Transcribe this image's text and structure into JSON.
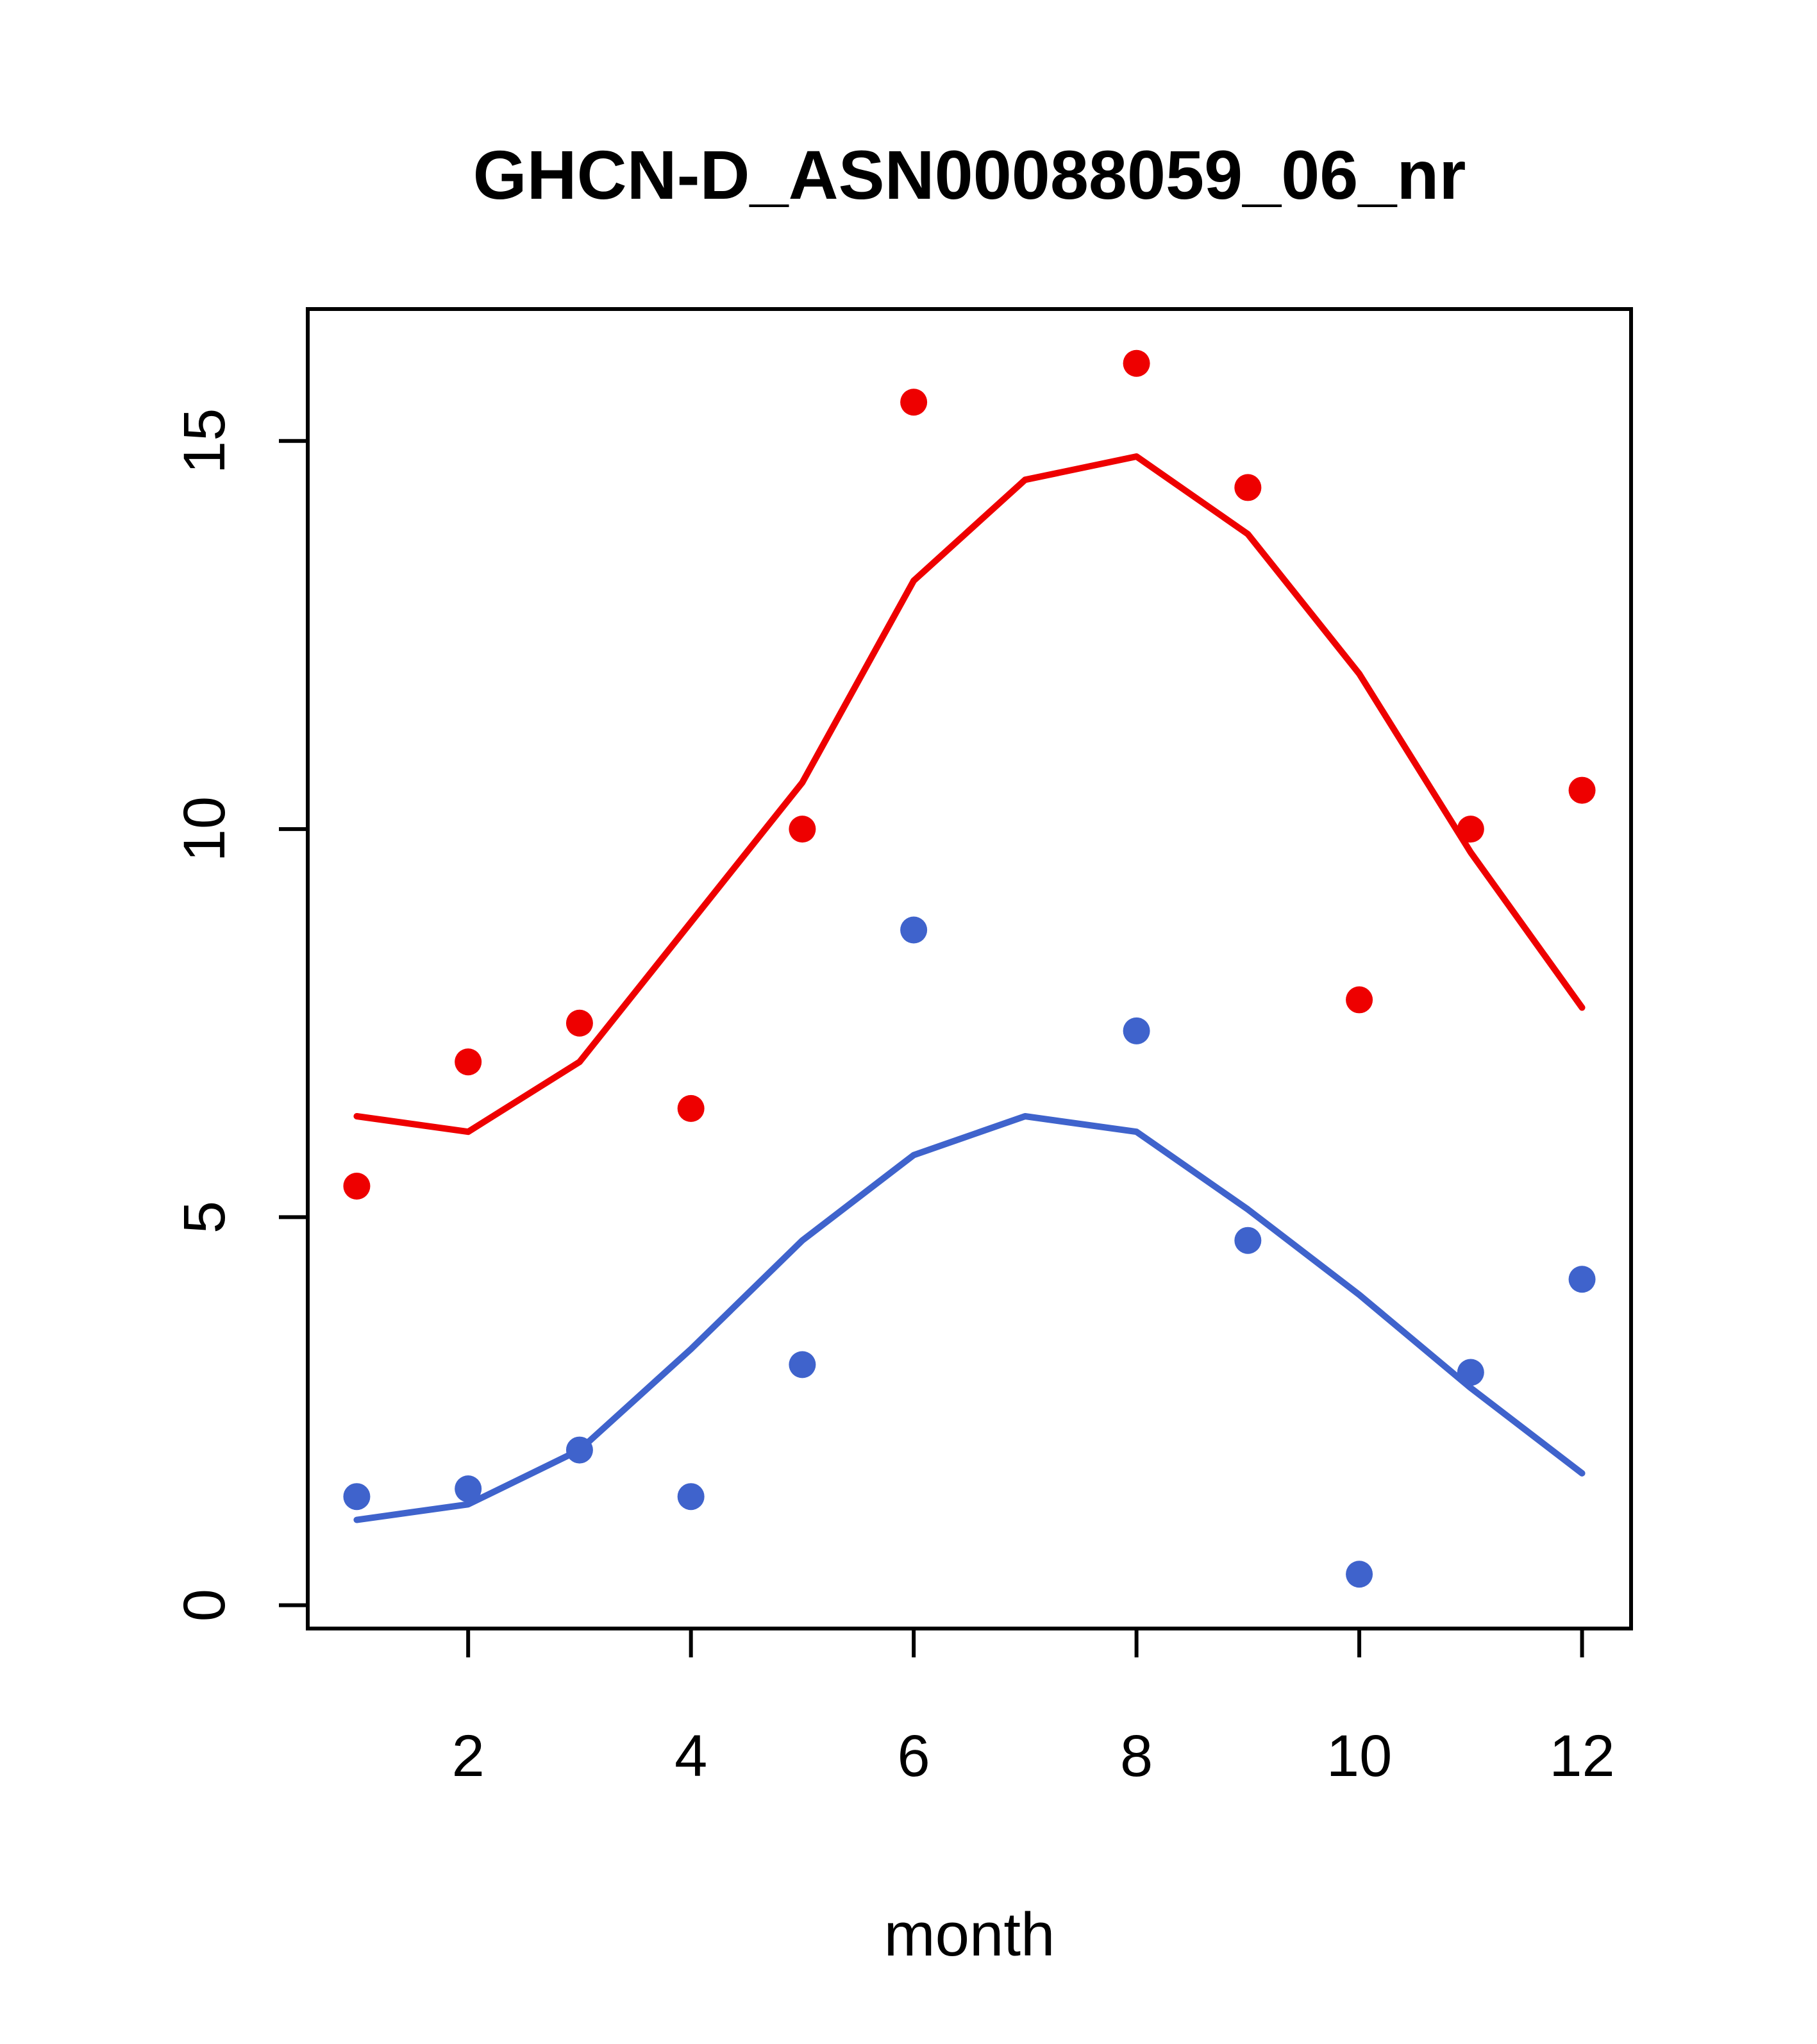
{
  "page": {
    "background": "#ffffff"
  },
  "chart_data": {
    "type": "scatter",
    "title": "GHCN-D_ASN00088059_06_nr",
    "xlabel": "month",
    "ylabel": "",
    "xlim": [
      0.56,
      12.44
    ],
    "ylim": [
      -0.3,
      16.7
    ],
    "x_ticks": [
      2,
      4,
      6,
      8,
      10,
      12
    ],
    "y_ticks": [
      0,
      5,
      10,
      15
    ],
    "grid": false,
    "legend": "none",
    "colors": {
      "red_series": "#EE0000",
      "blue_series": "#3F63CC",
      "axis": "#000000"
    },
    "series": [
      {
        "name": "red-trend-line",
        "type": "line",
        "color": "#EE0000",
        "x": [
          1,
          2,
          3,
          4,
          5,
          6,
          7,
          8,
          9,
          10,
          11,
          12
        ],
        "y": [
          6.3,
          6.1,
          7.0,
          8.8,
          10.6,
          13.2,
          14.5,
          14.8,
          13.8,
          12.0,
          9.7,
          7.7
        ]
      },
      {
        "name": "blue-trend-line",
        "type": "line",
        "color": "#3F63CC",
        "x": [
          1,
          2,
          3,
          4,
          5,
          6,
          7,
          8,
          9,
          10,
          11,
          12
        ],
        "y": [
          1.1,
          1.3,
          2.0,
          3.3,
          4.7,
          5.8,
          6.3,
          6.1,
          5.1,
          4.0,
          2.8,
          1.7
        ]
      },
      {
        "name": "red-points",
        "type": "points",
        "color": "#EE0000",
        "x": [
          1,
          2,
          3,
          4,
          5,
          6,
          8,
          9,
          10,
          11,
          12
        ],
        "y": [
          5.4,
          7.0,
          7.5,
          6.4,
          10.0,
          15.5,
          16.0,
          14.4,
          7.8,
          10.0,
          10.5
        ]
      },
      {
        "name": "blue-points",
        "type": "points",
        "color": "#3F63CC",
        "x": [
          1,
          2,
          3,
          4,
          5,
          6,
          8,
          9,
          10,
          11,
          12
        ],
        "y": [
          1.4,
          1.5,
          2.0,
          1.4,
          3.1,
          8.7,
          7.4,
          4.7,
          0.4,
          3.0,
          4.2
        ]
      }
    ]
  }
}
